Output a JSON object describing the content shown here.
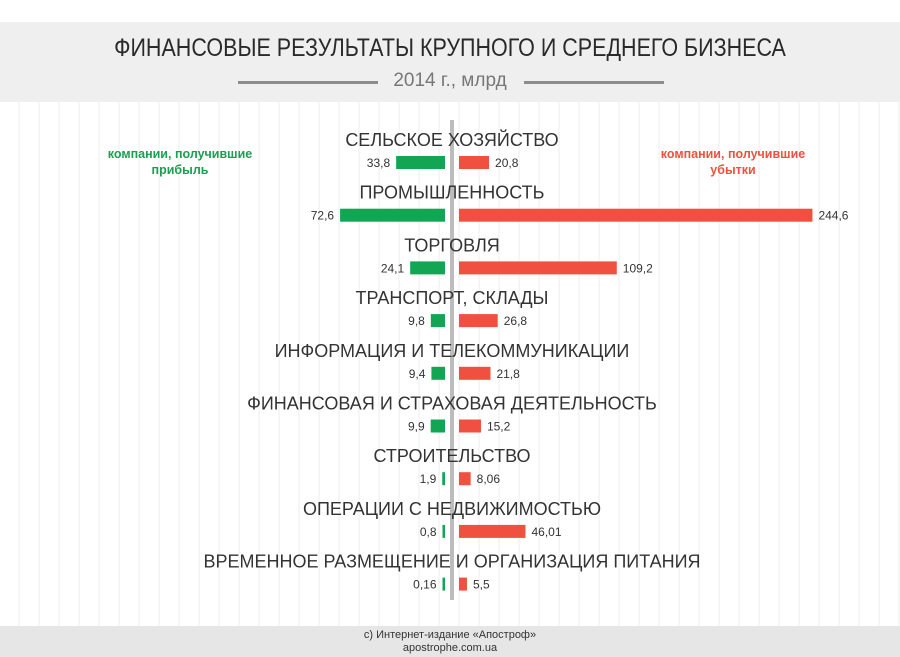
{
  "header": {
    "title": "ФИНАНСОВЫЕ РЕЗУЛЬТАТЫ КРУПНОГО И СРЕДНЕГО БИЗНЕСА",
    "subtitle": "2014 г., млрд"
  },
  "legend": {
    "profit": "компании, получившие прибыль",
    "loss": "компании, получившие убытки"
  },
  "colors": {
    "profit": "#12a654",
    "loss": "#f0503f",
    "axis": "#bcbcbc"
  },
  "chart_data": {
    "type": "bar",
    "orientation": "horizontal-diverging",
    "categories": [
      "СЕЛЬСКОЕ ХОЗЯЙСТВО",
      "ПРОМЫШЛЕННОСТЬ",
      "ТОРГОВЛЯ",
      "ТРАНСПОРТ, СКЛАДЫ",
      "ИНФОРМАЦИЯ И ТЕЛЕКОММУНИКАЦИИ",
      "ФИНАНСОВАЯ И СТРАХОВАЯ ДЕЯТЕЛЬНОСТЬ",
      "СТРОИТЕЛЬСТВО",
      "ОПЕРАЦИИ С НЕДВИЖИМОСТЬЮ",
      "ВРЕМЕННОЕ РАЗМЕЩЕНИЕ И ОРГАНИЗАЦИЯ ПИТАНИЯ"
    ],
    "series": [
      {
        "name": "компании, получившие прибыль",
        "values": [
          33.8,
          72.6,
          24.1,
          9.8,
          9.4,
          9.9,
          1.9,
          0.8,
          0.16
        ],
        "labels": [
          "33,8",
          "72,6",
          "24,1",
          "9,8",
          "9,4",
          "9,9",
          "1,9",
          "0,8",
          "0,16"
        ]
      },
      {
        "name": "компании, получившие убытки",
        "values": [
          20.8,
          244.6,
          109.2,
          26.8,
          21.8,
          15.2,
          8.06,
          46.01,
          5.5
        ],
        "labels": [
          "20,8",
          "244,6",
          "109,2",
          "26,8",
          "21,8",
          "15,2",
          "8,06",
          "46,01",
          "5,5"
        ]
      }
    ],
    "unit": "млрд"
  },
  "footer": {
    "line1": "с) Интернет-издание «Апостроф»",
    "line2": "apostrophe.com.ua"
  }
}
